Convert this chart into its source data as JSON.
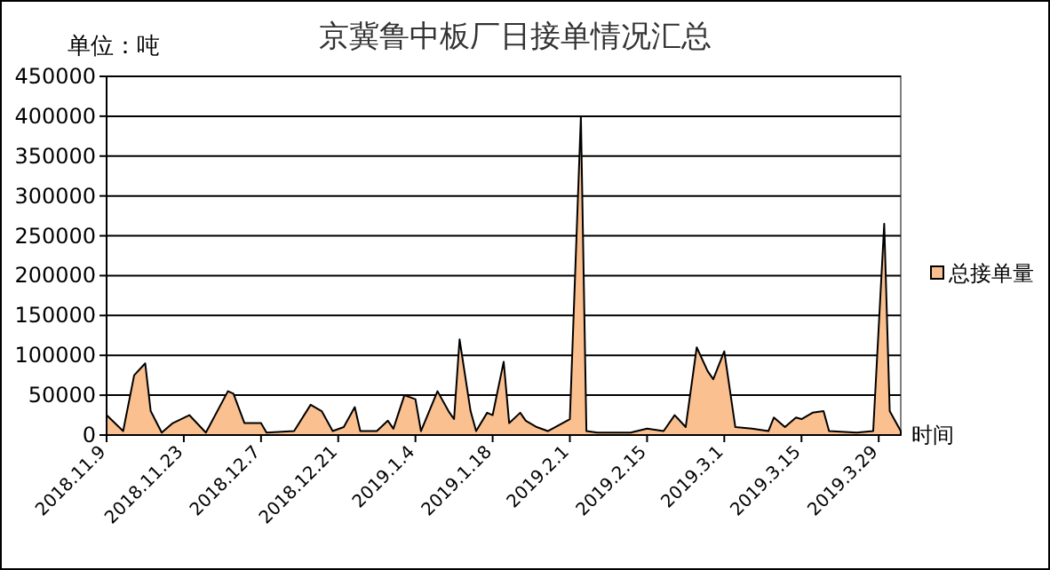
{
  "chart_data": {
    "type": "area",
    "title": "京冀鲁中板厂日接单情况汇总",
    "ylabel": "单位：吨",
    "xlabel": "时间",
    "x": [
      "2018-11-09",
      "2018-11-12",
      "2018-11-14",
      "2018-11-16",
      "2018-11-17",
      "2018-11-19",
      "2018-11-21",
      "2018-11-24",
      "2018-11-27",
      "2018-12-01",
      "2018-12-02",
      "2018-12-04",
      "2018-12-07",
      "2018-12-08",
      "2018-12-13",
      "2018-12-16",
      "2018-12-18",
      "2018-12-20",
      "2018-12-22",
      "2018-12-24",
      "2018-12-25",
      "2018-12-28",
      "2018-12-30",
      "2018-12-31",
      "2019-01-02",
      "2019-01-04",
      "2019-01-05",
      "2019-01-08",
      "2019-01-10",
      "2019-01-11",
      "2019-01-12",
      "2019-01-14",
      "2019-01-15",
      "2019-01-17",
      "2019-01-18",
      "2019-01-20",
      "2019-01-21",
      "2019-01-23",
      "2019-01-24",
      "2019-01-26",
      "2019-01-28",
      "2019-02-01",
      "2019-02-03",
      "2019-02-04",
      "2019-02-06",
      "2019-02-12",
      "2019-02-15",
      "2019-02-18",
      "2019-02-20",
      "2019-02-22",
      "2019-02-24",
      "2019-02-26",
      "2019-02-27",
      "2019-03-01",
      "2019-03-03",
      "2019-03-06",
      "2019-03-09",
      "2019-03-10",
      "2019-03-12",
      "2019-03-14",
      "2019-03-15",
      "2019-03-17",
      "2019-03-19",
      "2019-03-20",
      "2019-03-25",
      "2019-03-28",
      "2019-03-30",
      "2019-03-31",
      "2019-04-02"
    ],
    "series": [
      {
        "name": "总接单量",
        "color": "#fac090",
        "values": [
          25000,
          5000,
          75000,
          90000,
          30000,
          3000,
          15000,
          25000,
          3000,
          55000,
          52000,
          15000,
          15000,
          3000,
          5000,
          38000,
          30000,
          5000,
          10000,
          35000,
          5000,
          5000,
          18000,
          8000,
          50000,
          45000,
          5000,
          55000,
          30000,
          20000,
          120000,
          30000,
          5000,
          28000,
          25000,
          92000,
          15000,
          28000,
          18000,
          10000,
          5000,
          20000,
          400000,
          5000,
          3000,
          3000,
          8000,
          5000,
          25000,
          10000,
          110000,
          80000,
          70000,
          105000,
          10000,
          8000,
          5000,
          22000,
          10000,
          22000,
          20000,
          28000,
          30000,
          5000,
          3000,
          5000,
          265000,
          30000,
          5000
        ]
      }
    ],
    "xlim": [
      "2018-11-09",
      "2019-04-02"
    ],
    "xticks": [
      {
        "value": "2018-11-09",
        "label": "2018.11.9"
      },
      {
        "value": "2018-11-23",
        "label": "2018.11.23"
      },
      {
        "value": "2018-12-07",
        "label": "2018.12.7"
      },
      {
        "value": "2018-12-21",
        "label": "2018.12.21"
      },
      {
        "value": "2019-01-04",
        "label": "2019.1.4"
      },
      {
        "value": "2019-01-18",
        "label": "2019.1.18"
      },
      {
        "value": "2019-02-01",
        "label": "2019.2.1"
      },
      {
        "value": "2019-02-15",
        "label": "2019.2.15"
      },
      {
        "value": "2019-03-01",
        "label": "2019.3.1"
      },
      {
        "value": "2019-03-15",
        "label": "2019.3.15"
      },
      {
        "value": "2019-03-29",
        "label": "2019.3.29"
      }
    ],
    "ylim": [
      0,
      450000
    ],
    "yticks": [
      0,
      50000,
      100000,
      150000,
      200000,
      250000,
      300000,
      350000,
      400000,
      450000
    ],
    "grid": "y",
    "legend": "right"
  }
}
